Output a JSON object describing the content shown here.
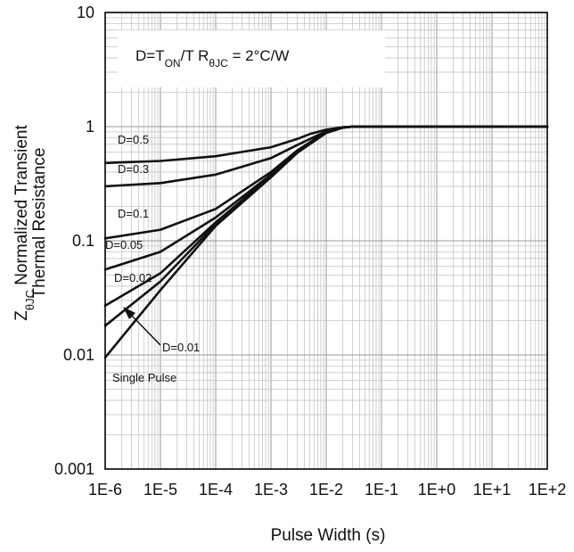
{
  "chart_data": {
    "type": "line",
    "title": "",
    "xlabel": "Pulse Width (s)",
    "ylabel": {
      "z": "Z",
      "sub": "θJC",
      "line1_rest": " Normalized Transient",
      "line2": "Thermal Resistance"
    },
    "xscale": "log",
    "yscale": "log",
    "xlim": [
      1e-06,
      100
    ],
    "ylim": [
      0.001,
      10
    ],
    "grid": true,
    "x_ticks": [
      {
        "value": 1e-06,
        "label": "1E-6"
      },
      {
        "value": 1e-05,
        "label": "1E-5"
      },
      {
        "value": 0.0001,
        "label": "1E-4"
      },
      {
        "value": 0.001,
        "label": "1E-3"
      },
      {
        "value": 0.01,
        "label": "1E-2"
      },
      {
        "value": 0.1,
        "label": "1E-1"
      },
      {
        "value": 1,
        "label": "1E+0"
      },
      {
        "value": 10,
        "label": "1E+1"
      },
      {
        "value": 100,
        "label": "1E+2"
      }
    ],
    "y_ticks": [
      {
        "value": 0.001,
        "label": "0.001"
      },
      {
        "value": 0.01,
        "label": "0.01"
      },
      {
        "value": 0.1,
        "label": "0.1"
      },
      {
        "value": 1,
        "label": "1"
      },
      {
        "value": 10,
        "label": "10"
      }
    ],
    "annotation": {
      "d_part": "D=T",
      "d_sub": "ON",
      "d_rest": "/T  R",
      "r_sub": "θJC",
      "r_rest": " = 2°C/W"
    },
    "series": [
      {
        "name": "D=0.5",
        "points": [
          [
            1e-06,
            0.48
          ],
          [
            1e-05,
            0.5
          ],
          [
            0.0001,
            0.55
          ],
          [
            0.001,
            0.66
          ],
          [
            0.003,
            0.78
          ],
          [
            0.005,
            0.86
          ],
          [
            0.01,
            0.94
          ],
          [
            0.02,
            0.99
          ],
          [
            0.03,
            1.0
          ],
          [
            100,
            1.0
          ]
        ]
      },
      {
        "name": "D=0.3",
        "points": [
          [
            1e-06,
            0.3
          ],
          [
            1e-05,
            0.32
          ],
          [
            0.0001,
            0.38
          ],
          [
            0.001,
            0.53
          ],
          [
            0.003,
            0.69
          ],
          [
            0.01,
            0.91
          ],
          [
            0.02,
            0.98
          ],
          [
            0.03,
            1.0
          ],
          [
            100,
            1.0
          ]
        ]
      },
      {
        "name": "D=0.1",
        "points": [
          [
            1e-06,
            0.105
          ],
          [
            1e-05,
            0.125
          ],
          [
            0.0001,
            0.19
          ],
          [
            0.001,
            0.4
          ],
          [
            0.003,
            0.62
          ],
          [
            0.01,
            0.9
          ],
          [
            0.02,
            0.98
          ],
          [
            0.03,
            1.0
          ],
          [
            100,
            1.0
          ]
        ]
      },
      {
        "name": "D=0.05",
        "points": [
          [
            1e-06,
            0.056
          ],
          [
            1e-05,
            0.08
          ],
          [
            0.0001,
            0.16
          ],
          [
            0.001,
            0.38
          ],
          [
            0.003,
            0.61
          ],
          [
            0.01,
            0.89
          ],
          [
            0.02,
            0.98
          ],
          [
            0.03,
            1.0
          ],
          [
            100,
            1.0
          ]
        ]
      },
      {
        "name": "D=0.02",
        "points": [
          [
            1e-06,
            0.027
          ],
          [
            1e-05,
            0.052
          ],
          [
            0.0001,
            0.145
          ],
          [
            0.001,
            0.37
          ],
          [
            0.003,
            0.6
          ],
          [
            0.01,
            0.89
          ],
          [
            0.02,
            0.98
          ],
          [
            0.03,
            1.0
          ],
          [
            100,
            1.0
          ]
        ]
      },
      {
        "name": "D=0.01",
        "points": [
          [
            1e-06,
            0.018
          ],
          [
            1e-05,
            0.044
          ],
          [
            0.0001,
            0.14
          ],
          [
            0.001,
            0.365
          ],
          [
            0.003,
            0.6
          ],
          [
            0.01,
            0.89
          ],
          [
            0.02,
            0.98
          ],
          [
            0.03,
            1.0
          ],
          [
            100,
            1.0
          ]
        ]
      },
      {
        "name": "Single Pulse",
        "points": [
          [
            1e-06,
            0.0095
          ],
          [
            1e-05,
            0.037
          ],
          [
            0.0001,
            0.135
          ],
          [
            0.001,
            0.36
          ],
          [
            0.003,
            0.59
          ],
          [
            0.01,
            0.88
          ],
          [
            0.02,
            0.98
          ],
          [
            0.03,
            1.0
          ],
          [
            100,
            1.0
          ]
        ]
      }
    ]
  }
}
